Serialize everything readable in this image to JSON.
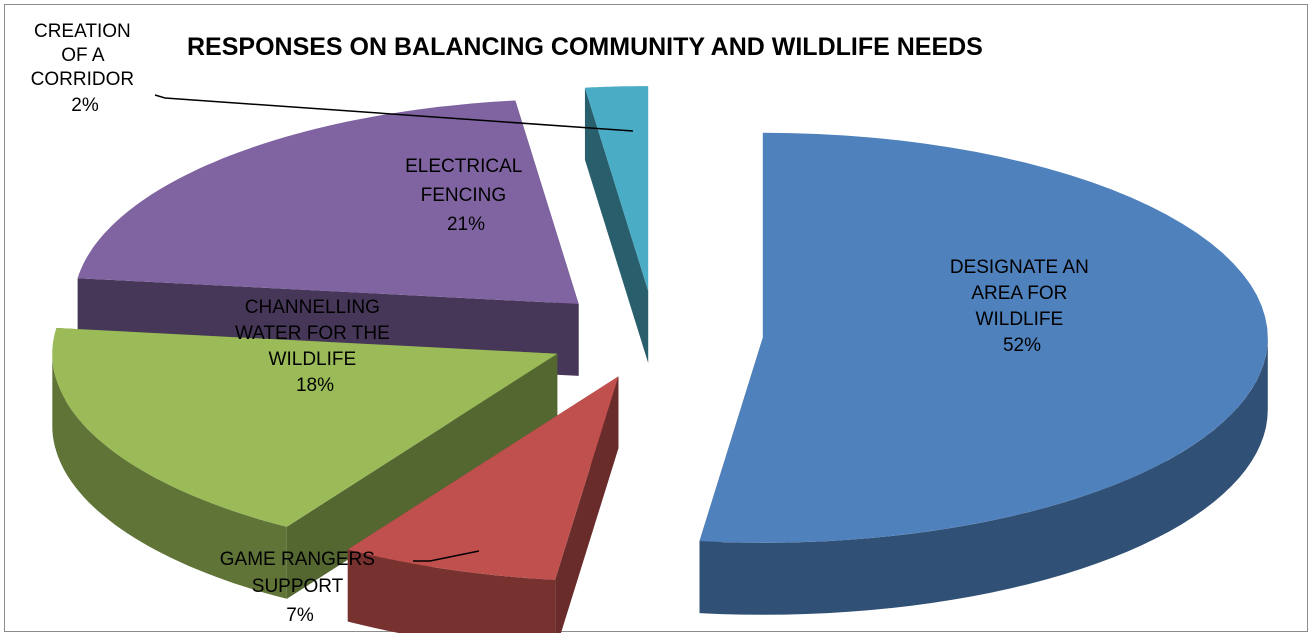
{
  "chart_data": {
    "type": "pie",
    "title": "RESPONSES ON BALANCING COMMUNITY AND WILDLIFE NEEDS",
    "exploded": true,
    "three_d": true,
    "legend": "none",
    "slices": [
      {
        "label_lines": [
          "DESIGNATE AN",
          "AREA FOR",
          "WILDLIFE",
          "52%"
        ],
        "value": 52,
        "color": "#4f81bd"
      },
      {
        "label_lines": [
          "GAME RANGERS",
          "SUPPORT",
          "7%"
        ],
        "value": 7,
        "color": "#c0504d"
      },
      {
        "label_lines": [
          "CHANNELLING",
          "WATER FOR THE",
          "WILDLIFE",
          "18%"
        ],
        "value": 18,
        "color": "#9bbb59"
      },
      {
        "label_lines": [
          "ELECTRICAL",
          "FENCING",
          "21%"
        ],
        "value": 21,
        "color": "#8064a2"
      },
      {
        "label_lines": [
          "CREATION",
          "OF A",
          "CORRIDOR",
          "2%"
        ],
        "value": 2,
        "color": "#4bacc6"
      }
    ]
  }
}
